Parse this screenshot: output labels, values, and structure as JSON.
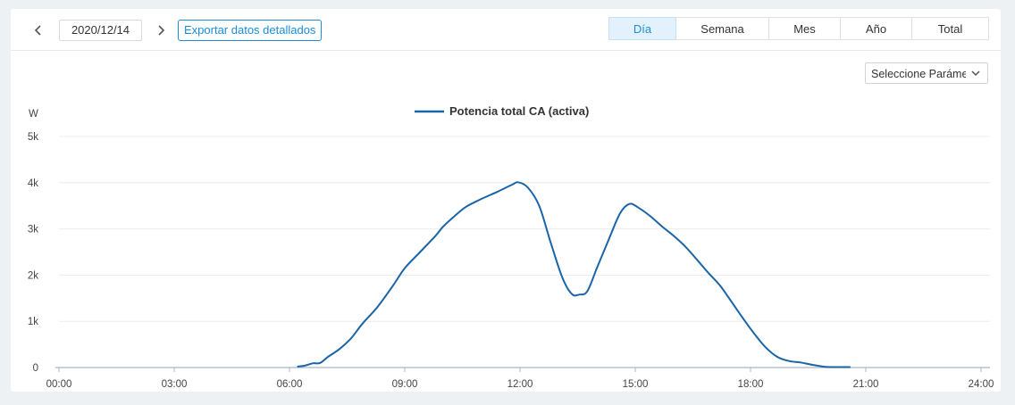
{
  "toolbar": {
    "date": "2020/12/14",
    "export_label": "Exportar datos detallados",
    "periods": [
      {
        "label": "Día",
        "active": true
      },
      {
        "label": "Semana",
        "active": false
      },
      {
        "label": "Mes",
        "active": false
      },
      {
        "label": "Año",
        "active": false
      },
      {
        "label": "Total",
        "active": false
      }
    ],
    "prev_icon": "chevron-left-icon",
    "next_icon": "chevron-right-icon"
  },
  "selector": {
    "value": "Seleccione Parámetros",
    "icon": "chevron-down-icon"
  },
  "colors": {
    "series": "#1a64a8",
    "accent": "#1a8dd9",
    "grid": "#ececec",
    "axis": "#a9b7c6"
  },
  "chart_data": {
    "type": "line",
    "ylabel": "W",
    "ylim": [
      0,
      5000
    ],
    "yticks": [
      {
        "value": 0,
        "label": "0"
      },
      {
        "value": 1000,
        "label": "1k"
      },
      {
        "value": 2000,
        "label": "2k"
      },
      {
        "value": 3000,
        "label": "3k"
      },
      {
        "value": 4000,
        "label": "4k"
      },
      {
        "value": 5000,
        "label": "5k"
      }
    ],
    "xlim": [
      0,
      24
    ],
    "xticks": [
      {
        "value": 0,
        "label": "00:00"
      },
      {
        "value": 3,
        "label": "03:00"
      },
      {
        "value": 6,
        "label": "06:00"
      },
      {
        "value": 9,
        "label": "09:00"
      },
      {
        "value": 12,
        "label": "12:00"
      },
      {
        "value": 15,
        "label": "15:00"
      },
      {
        "value": 18,
        "label": "18:00"
      },
      {
        "value": 21,
        "label": "21:00"
      },
      {
        "value": 24,
        "label": "24:00"
      }
    ],
    "legend_position": "top-center",
    "grid": true,
    "series": [
      {
        "name": "Potencia total CA (activa)",
        "points": [
          [
            6.2,
            20
          ],
          [
            6.4,
            40
          ],
          [
            6.6,
            90
          ],
          [
            6.8,
            100
          ],
          [
            7.0,
            230
          ],
          [
            7.3,
            400
          ],
          [
            7.6,
            630
          ],
          [
            7.9,
            950
          ],
          [
            8.3,
            1320
          ],
          [
            8.7,
            1780
          ],
          [
            9.0,
            2150
          ],
          [
            9.4,
            2500
          ],
          [
            9.8,
            2850
          ],
          [
            10.0,
            3050
          ],
          [
            10.3,
            3280
          ],
          [
            10.6,
            3480
          ],
          [
            11.0,
            3650
          ],
          [
            11.4,
            3800
          ],
          [
            11.8,
            3960
          ],
          [
            11.95,
            4010
          ],
          [
            12.2,
            3900
          ],
          [
            12.5,
            3500
          ],
          [
            12.8,
            2700
          ],
          [
            13.1,
            1950
          ],
          [
            13.35,
            1590
          ],
          [
            13.55,
            1580
          ],
          [
            13.75,
            1650
          ],
          [
            14.0,
            2150
          ],
          [
            14.3,
            2750
          ],
          [
            14.6,
            3330
          ],
          [
            14.85,
            3540
          ],
          [
            15.1,
            3450
          ],
          [
            15.4,
            3270
          ],
          [
            15.7,
            3050
          ],
          [
            16.0,
            2850
          ],
          [
            16.3,
            2620
          ],
          [
            16.6,
            2340
          ],
          [
            16.9,
            2050
          ],
          [
            17.2,
            1780
          ],
          [
            17.5,
            1430
          ],
          [
            17.8,
            1070
          ],
          [
            18.1,
            730
          ],
          [
            18.4,
            430
          ],
          [
            18.7,
            230
          ],
          [
            19.0,
            140
          ],
          [
            19.3,
            110
          ],
          [
            19.6,
            60
          ],
          [
            19.9,
            20
          ],
          [
            20.1,
            10
          ],
          [
            20.6,
            10
          ]
        ]
      }
    ]
  }
}
